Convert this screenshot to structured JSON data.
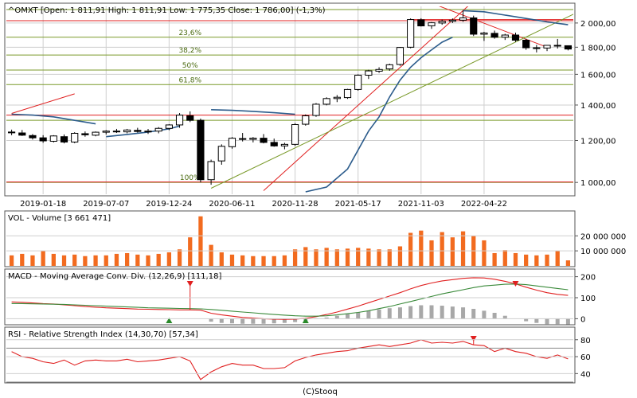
{
  "colors": {
    "frame": "#555555",
    "grid": "#cfcfcf",
    "price_line": "#000000",
    "fib_line": "#7a9a2a",
    "red_line": "#e02020",
    "blue_line": "#2c5c8c",
    "volume_bar": "#f26b1f",
    "macd_hist": "#a8a8a8",
    "rsi_line": "#e02020",
    "arrow_up": "#2a8a2a",
    "arrow_down": "#e02020"
  },
  "footer": {
    "copyright": "(C)Stooq"
  },
  "chart_data": [
    {
      "type": "candlestick",
      "title": "^OMXT [Open: 1 811,91  High: 1 811,91  Low: 1 775,35  Close: 1 786,00] (-1,3%)",
      "scale": "log",
      "ylim": [
        950,
        2150
      ],
      "y_ticks": [
        1000,
        1200,
        1400,
        1600,
        1800,
        2000
      ],
      "y_tick_labels": [
        "1 000,00",
        "1 200,00",
        "1 400,00",
        "1 600,00",
        "1 800,00",
        "2 000,00"
      ],
      "x_tick_labels": [
        "2019-01-18",
        "2019-07-07",
        "2019-12-24",
        "2020-06-11",
        "2020-11-28",
        "2021-05-17",
        "2021-11-03",
        "2022-04-22"
      ],
      "x_tick_index": [
        3,
        9,
        15,
        21,
        27,
        33,
        39,
        45
      ],
      "ohlc": [
        [
          1245,
          1258,
          1228,
          1242
        ],
        [
          1240,
          1256,
          1224,
          1228
        ],
        [
          1226,
          1234,
          1205,
          1214
        ],
        [
          1214,
          1228,
          1188,
          1198
        ],
        [
          1196,
          1228,
          1190,
          1224
        ],
        [
          1220,
          1232,
          1185,
          1192
        ],
        [
          1192,
          1244,
          1186,
          1238
        ],
        [
          1236,
          1248,
          1220,
          1230
        ],
        [
          1228,
          1248,
          1222,
          1244
        ],
        [
          1244,
          1255,
          1232,
          1250
        ],
        [
          1250,
          1262,
          1240,
          1246
        ],
        [
          1246,
          1262,
          1238,
          1256
        ],
        [
          1254,
          1268,
          1242,
          1248
        ],
        [
          1246,
          1262,
          1235,
          1250
        ],
        [
          1250,
          1272,
          1238,
          1265
        ],
        [
          1265,
          1288,
          1255,
          1284
        ],
        [
          1284,
          1352,
          1268,
          1340
        ],
        [
          1336,
          1362,
          1300,
          1310
        ],
        [
          1310,
          1320,
          1000,
          1012
        ],
        [
          1012,
          1104,
          990,
          1095
        ],
        [
          1098,
          1180,
          1080,
          1170
        ],
        [
          1168,
          1218,
          1158,
          1212
        ],
        [
          1210,
          1240,
          1195,
          1208
        ],
        [
          1206,
          1218,
          1190,
          1212
        ],
        [
          1212,
          1234,
          1185,
          1190
        ],
        [
          1190,
          1210,
          1168,
          1172
        ],
        [
          1172,
          1188,
          1155,
          1180
        ],
        [
          1180,
          1294,
          1172,
          1286
        ],
        [
          1288,
          1344,
          1280,
          1336
        ],
        [
          1338,
          1412,
          1330,
          1405
        ],
        [
          1405,
          1448,
          1398,
          1440
        ],
        [
          1440,
          1462,
          1418,
          1448
        ],
        [
          1446,
          1502,
          1438,
          1498
        ],
        [
          1498,
          1600,
          1490,
          1594
        ],
        [
          1594,
          1632,
          1568,
          1624
        ],
        [
          1622,
          1650,
          1610,
          1634
        ],
        [
          1638,
          1676,
          1625,
          1668
        ],
        [
          1670,
          1802,
          1660,
          1798
        ],
        [
          1800,
          2040,
          1792,
          2030
        ],
        [
          2028,
          2042,
          1970,
          1975
        ],
        [
          1976,
          2008,
          1950,
          2002
        ],
        [
          2000,
          2030,
          1985,
          2015
        ],
        [
          2015,
          2040,
          2000,
          2025
        ],
        [
          2025,
          2110,
          2010,
          2045
        ],
        [
          2045,
          2065,
          1890,
          1905
        ],
        [
          1905,
          1925,
          1850,
          1915
        ],
        [
          1912,
          1935,
          1868,
          1880
        ],
        [
          1880,
          1908,
          1858,
          1898
        ],
        [
          1898,
          1918,
          1842,
          1856
        ],
        [
          1856,
          1868,
          1780,
          1796
        ],
        [
          1796,
          1818,
          1760,
          1792
        ],
        [
          1794,
          1812,
          1770,
          1815
        ],
        [
          1815,
          1866,
          1790,
          1812
        ],
        [
          1811.91,
          1811.91,
          1775.35,
          1786.0
        ]
      ],
      "fibonacci_levels": [
        {
          "label": "",
          "value": 2120
        },
        {
          "label": "23,6%",
          "value": 1880
        },
        {
          "label": "38,2%",
          "value": 1740
        },
        {
          "label": "50%",
          "value": 1630
        },
        {
          "label": "61,8%",
          "value": 1530
        },
        {
          "label": "",
          "value": 1310
        },
        {
          "label": "100%",
          "value": 1000
        }
      ],
      "horizontal_red_levels": [
        1340,
        1002,
        2020
      ],
      "trend_lines": [
        {
          "color": "red",
          "points": [
            [
              0,
              1350
            ],
            [
              6,
              1470
            ]
          ]
        },
        {
          "color": "red",
          "points": [
            [
              24,
              965
            ],
            [
              44,
              2200
            ]
          ]
        },
        {
          "color": "red",
          "points": [
            [
              40,
              2180
            ],
            [
              51,
              1800
            ]
          ]
        },
        {
          "color": "red",
          "points": [
            [
              38,
              2030
            ],
            [
              54,
              2030
            ]
          ]
        },
        {
          "color": "olive",
          "points": [
            [
              19,
              975
            ],
            [
              54,
              2100
            ]
          ]
        }
      ],
      "moving_average_segments": [
        {
          "x": [
            0,
            2,
            4,
            6,
            8
          ],
          "y": [
            1345,
            1340,
            1330,
            1310,
            1290
          ]
        },
        {
          "x": [
            9,
            11,
            13,
            15,
            16
          ],
          "y": [
            1220,
            1232,
            1245,
            1262,
            1278
          ]
        },
        {
          "x": [
            19,
            21,
            23,
            25,
            27
          ],
          "y": [
            1372,
            1368,
            1362,
            1354,
            1345
          ]
        },
        {
          "x": [
            28,
            30,
            32,
            34,
            35,
            36,
            37,
            38,
            39,
            40,
            41,
            42
          ],
          "y": [
            960,
            980,
            1060,
            1250,
            1330,
            1450,
            1560,
            1650,
            1720,
            1780,
            1840,
            1880
          ]
        },
        {
          "x": [
            43,
            45,
            47,
            49,
            51,
            53
          ],
          "y": [
            2110,
            2100,
            2070,
            2040,
            2010,
            1985
          ]
        }
      ]
    },
    {
      "type": "bar",
      "title": "VOL - Volume [3 661 471]",
      "ylim": [
        0,
        35000000
      ],
      "y_ticks": [
        10000000,
        20000000
      ],
      "y_tick_labels": [
        "10 000 000",
        "20 000 000"
      ],
      "values": [
        7000000,
        8000000,
        7000000,
        10000000,
        8000000,
        7000000,
        7500000,
        6500000,
        7000000,
        7000000,
        8000000,
        8500000,
        7500000,
        7000000,
        8000000,
        9000000,
        11000000,
        19000000,
        33000000,
        14000000,
        9000000,
        7500000,
        7000000,
        6500000,
        6500000,
        6500000,
        7000000,
        11000000,
        12500000,
        11000000,
        12000000,
        11000000,
        11500000,
        12000000,
        11500000,
        11000000,
        11000000,
        13000000,
        22000000,
        23500000,
        17000000,
        22500000,
        19000000,
        23000000,
        20000000,
        17000000,
        8500000,
        10500000,
        8500000,
        7500000,
        7000000,
        7500000,
        10000000,
        3661471
      ]
    },
    {
      "type": "line",
      "title": "MACD - Moving Average Conv. Div. (12,26,9) [111,18]",
      "ylim": [
        -25,
        225
      ],
      "y_ticks": [
        0,
        100,
        200
      ],
      "y_tick_labels": [
        "0",
        "100",
        "200"
      ],
      "series": [
        {
          "values": [
            80,
            78,
            75,
            72,
            70,
            66,
            62,
            58,
            55,
            52,
            50,
            48,
            46,
            45,
            44,
            43,
            42,
            42,
            41,
            26,
            18,
            12,
            6,
            3,
            0,
            -2,
            -3,
            -2,
            2,
            10,
            20,
            32,
            46,
            60,
            76,
            92,
            108,
            124,
            142,
            158,
            170,
            180,
            186,
            192,
            195,
            194,
            188,
            178,
            166,
            150,
            136,
            124,
            116,
            111
          ]
        },
        {
          "values": [
            72,
            72,
            71,
            70,
            69,
            68,
            66,
            64,
            62,
            60,
            58,
            56,
            54,
            52,
            51,
            50,
            49,
            48,
            47,
            44,
            40,
            36,
            32,
            28,
            24,
            20,
            17,
            14,
            12,
            12,
            14,
            18,
            24,
            30,
            38,
            48,
            58,
            70,
            82,
            94,
            106,
            118,
            128,
            138,
            148,
            156,
            160,
            164,
            165,
            162,
            156,
            150,
            144,
            138
          ]
        }
      ],
      "histogram": [
        0,
        0,
        0,
        0,
        0,
        0,
        0,
        0,
        0,
        0,
        0,
        0,
        0,
        0,
        0,
        0,
        0,
        0,
        0,
        -14,
        -20,
        -22,
        -24,
        -24,
        -24,
        -22,
        -20,
        -16,
        -10,
        -2,
        6,
        14,
        22,
        30,
        38,
        44,
        50,
        54,
        60,
        64,
        64,
        62,
        58,
        54,
        47,
        38,
        28,
        14,
        1,
        -12,
        -20,
        -26,
        -28,
        -27
      ],
      "markers": [
        {
          "kind": "buy",
          "index": 15
        },
        {
          "kind": "sell",
          "index": 17
        },
        {
          "kind": "buy",
          "index": 28
        },
        {
          "kind": "sell",
          "index": 48
        }
      ]
    },
    {
      "type": "line",
      "title": "RSI - Relative Strength Index (14,30,70) [57,34]",
      "ylim": [
        30,
        92
      ],
      "y_ticks": [
        40,
        60,
        80
      ],
      "y_tick_labels": [
        "40",
        "60",
        "80"
      ],
      "threshold_levels": [
        30,
        70
      ],
      "series": [
        {
          "values": [
            66,
            60,
            58,
            54,
            52,
            56,
            50,
            55,
            56,
            55,
            55,
            57,
            54,
            55,
            56,
            58,
            60,
            55,
            33,
            42,
            48,
            52,
            50,
            50,
            46,
            46,
            47,
            55,
            59,
            62,
            64,
            66,
            67,
            70,
            72,
            74,
            72,
            74,
            76,
            80,
            76,
            77,
            76,
            78,
            74,
            73,
            66,
            70,
            66,
            64,
            60,
            58,
            62,
            57.34
          ]
        }
      ],
      "markers": [
        {
          "kind": "sell",
          "index": 44
        }
      ]
    }
  ]
}
